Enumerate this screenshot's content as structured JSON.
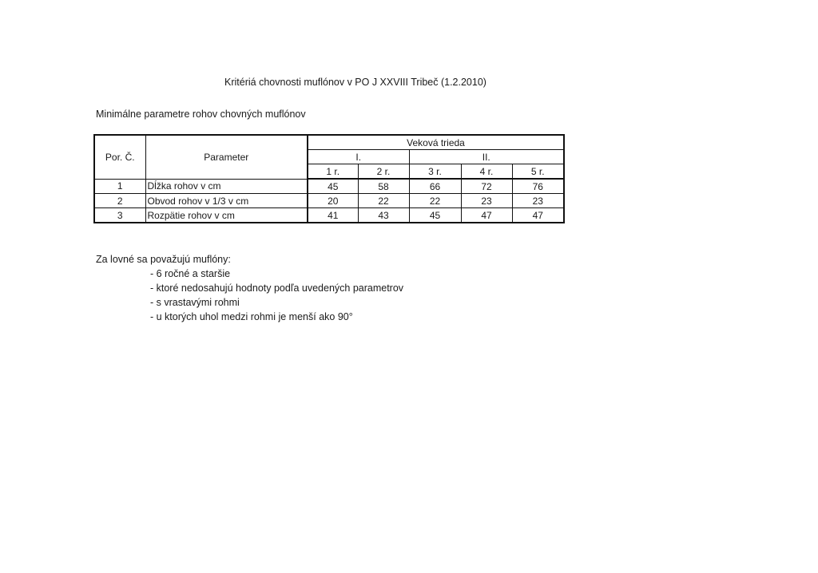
{
  "title": "Kritériá chovnosti muflónov v PO J XXVIII Tribeč (1.2.2010)",
  "subtitle": "Minimálne parametre rohov chovných muflónov",
  "table": {
    "header": {
      "por": "Por. Č.",
      "parameter": "Parameter",
      "group": "Veková trieda",
      "classes": [
        "I.",
        "II."
      ],
      "years": [
        "1 r.",
        "2 r.",
        "3 r.",
        "4 r.",
        "5 r."
      ]
    },
    "rows": [
      {
        "por": "1",
        "parameter": "Dĺžka rohov v cm",
        "values": [
          "45",
          "58",
          "66",
          "72",
          "76"
        ]
      },
      {
        "por": "2",
        "parameter": "Obvod rohov v 1/3 v cm",
        "values": [
          "20",
          "22",
          "22",
          "23",
          "23"
        ]
      },
      {
        "por": "3",
        "parameter": "Rozpätie rohov v cm",
        "values": [
          "41",
          "43",
          "45",
          "47",
          "47"
        ]
      }
    ]
  },
  "note": {
    "heading": "Za lovné sa považujú muflóny:",
    "items": [
      "- 6 ročné a staršie",
      "- ktoré nedosahujú hodnoty podľa uvedených parametrov",
      "- s vrastavými rohmi",
      "- u ktorých uhol medzi rohmi je menší ako 90°"
    ]
  }
}
